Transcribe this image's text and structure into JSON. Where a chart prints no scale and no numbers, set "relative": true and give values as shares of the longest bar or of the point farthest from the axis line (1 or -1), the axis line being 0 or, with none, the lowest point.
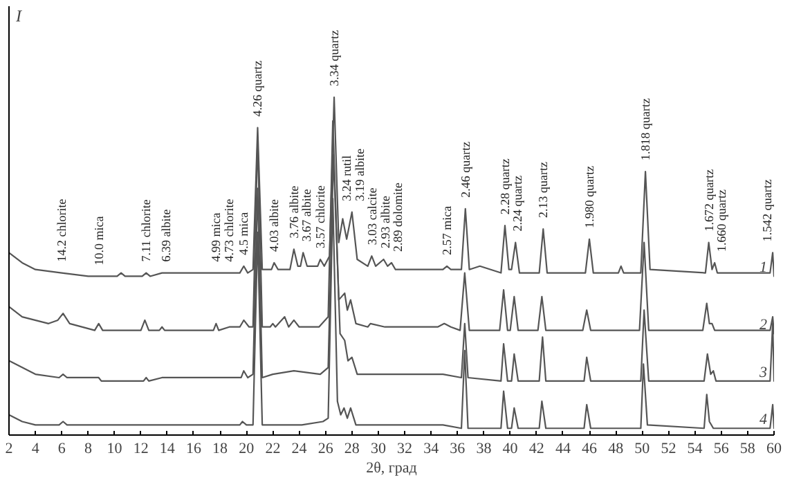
{
  "chart_data": {
    "type": "line",
    "relative": true,
    "xlabel": "2θ, град",
    "ylabel": "I",
    "xlim": [
      2,
      60
    ],
    "xticks": [
      2,
      4,
      6,
      8,
      10,
      12,
      14,
      16,
      18,
      20,
      22,
      24,
      26,
      28,
      30,
      32,
      34,
      36,
      38,
      40,
      42,
      44,
      46,
      48,
      50,
      52,
      54,
      56,
      58,
      60
    ],
    "grid": false,
    "legend": false,
    "marker": "none",
    "line_style": "solid",
    "series": [
      {
        "name": "1",
        "color": "#555555",
        "x": [
          2,
          3,
          4,
          6,
          8,
          8.8,
          10.2,
          10.5,
          10.8,
          12.1,
          12.4,
          12.7,
          13.6,
          13.9,
          14.2,
          17.7,
          18.7,
          19.5,
          19.8,
          20.1,
          20.5,
          20.85,
          21.2,
          21.9,
          22.1,
          22.4,
          23.3,
          23.6,
          23.9,
          24.1,
          24.3,
          24.6,
          25.4,
          25.6,
          25.9,
          26.3,
          26.65,
          27.0,
          27.3,
          27.6,
          28.0,
          28.4,
          29.2,
          29.5,
          29.8,
          30.4,
          30.7,
          31.0,
          31.3,
          34.9,
          35.2,
          35.5,
          36.3,
          36.6,
          36.9,
          37.7,
          39.3,
          39.6,
          39.9,
          40.1,
          40.4,
          40.7,
          42.2,
          42.5,
          42.8,
          45.7,
          46.0,
          46.3,
          48.2,
          48.4,
          48.6,
          49.9,
          50.25,
          50.6,
          54.8,
          55.05,
          55.3,
          55.5,
          55.7,
          59.7,
          59.9,
          60
        ],
        "values": [
          0.54,
          0.51,
          0.49,
          0.48,
          0.47,
          0.47,
          0.47,
          0.48,
          0.47,
          0.47,
          0.48,
          0.47,
          0.48,
          0.48,
          0.48,
          0.48,
          0.48,
          0.48,
          0.5,
          0.48,
          0.49,
          0.91,
          0.49,
          0.49,
          0.51,
          0.49,
          0.49,
          0.55,
          0.5,
          0.5,
          0.54,
          0.5,
          0.5,
          0.52,
          0.5,
          0.53,
          1.0,
          0.57,
          0.64,
          0.58,
          0.66,
          0.52,
          0.5,
          0.53,
          0.5,
          0.52,
          0.5,
          0.51,
          0.49,
          0.49,
          0.5,
          0.49,
          0.49,
          0.67,
          0.49,
          0.5,
          0.48,
          0.62,
          0.49,
          0.49,
          0.57,
          0.48,
          0.48,
          0.61,
          0.48,
          0.48,
          0.58,
          0.48,
          0.48,
          0.5,
          0.48,
          0.48,
          0.78,
          0.49,
          0.48,
          0.57,
          0.49,
          0.51,
          0.48,
          0.48,
          0.54,
          0.47
        ]
      },
      {
        "name": "2",
        "color": "#555555",
        "x": [
          2,
          3,
          5,
          5.7,
          6.1,
          6.6,
          8.5,
          8.8,
          9.1,
          12.0,
          12.3,
          12.6,
          13.4,
          13.6,
          13.8,
          17.5,
          17.7,
          17.9,
          18.7,
          19.5,
          19.8,
          20.2,
          20.5,
          20.85,
          21.2,
          21.8,
          22.0,
          22.2,
          22.9,
          23.2,
          23.6,
          24.0,
          24.3,
          25.5,
          26.2,
          26.55,
          27.0,
          27.45,
          27.65,
          27.9,
          28.3,
          29.2,
          29.4,
          30.5,
          31.3,
          34.5,
          35.0,
          35.5,
          36.2,
          36.55,
          36.9,
          39.2,
          39.5,
          39.8,
          40.0,
          40.3,
          40.6,
          42.1,
          42.4,
          42.7,
          45.5,
          45.8,
          46.1,
          49.8,
          50.15,
          50.5,
          54.6,
          54.9,
          55.1,
          55.3,
          55.5,
          59.7,
          59.9,
          60
        ],
        "values": [
          0.38,
          0.35,
          0.33,
          0.34,
          0.36,
          0.33,
          0.31,
          0.33,
          0.31,
          0.31,
          0.34,
          0.31,
          0.31,
          0.32,
          0.31,
          0.31,
          0.33,
          0.31,
          0.32,
          0.32,
          0.34,
          0.32,
          0.32,
          0.88,
          0.32,
          0.32,
          0.33,
          0.32,
          0.35,
          0.32,
          0.34,
          0.32,
          0.32,
          0.32,
          0.35,
          0.93,
          0.4,
          0.42,
          0.37,
          0.4,
          0.33,
          0.32,
          0.33,
          0.32,
          0.32,
          0.32,
          0.33,
          0.32,
          0.31,
          0.48,
          0.31,
          0.31,
          0.43,
          0.31,
          0.31,
          0.41,
          0.31,
          0.31,
          0.41,
          0.31,
          0.31,
          0.37,
          0.31,
          0.31,
          0.57,
          0.31,
          0.31,
          0.39,
          0.33,
          0.33,
          0.31,
          0.31,
          0.35,
          0.3
        ]
      },
      {
        "name": "3",
        "color": "#555555",
        "x": [
          2,
          3,
          4,
          5.8,
          6.1,
          6.4,
          8.6,
          8.8,
          9.0,
          12.2,
          12.4,
          12.6,
          13.6,
          19.6,
          19.8,
          20.1,
          20.5,
          20.85,
          21.2,
          22.0,
          23.6,
          25.6,
          26.2,
          26.6,
          27.1,
          27.45,
          27.7,
          28.0,
          28.4,
          34.9,
          36.3,
          36.55,
          36.8,
          39.3,
          39.5,
          39.8,
          40.1,
          40.3,
          40.6,
          42.2,
          42.45,
          42.7,
          45.6,
          45.8,
          46.1,
          49.9,
          50.15,
          50.5,
          54.7,
          54.95,
          55.2,
          55.4,
          55.6,
          59.7,
          59.9,
          60
        ],
        "values": [
          0.22,
          0.2,
          0.18,
          0.17,
          0.18,
          0.17,
          0.17,
          0.17,
          0.16,
          0.16,
          0.17,
          0.16,
          0.17,
          0.17,
          0.19,
          0.17,
          0.18,
          0.73,
          0.17,
          0.18,
          0.19,
          0.18,
          0.2,
          0.83,
          0.3,
          0.28,
          0.22,
          0.23,
          0.18,
          0.18,
          0.17,
          0.33,
          0.17,
          0.16,
          0.27,
          0.16,
          0.16,
          0.24,
          0.16,
          0.16,
          0.29,
          0.16,
          0.16,
          0.23,
          0.16,
          0.16,
          0.37,
          0.16,
          0.16,
          0.24,
          0.18,
          0.19,
          0.16,
          0.16,
          0.33,
          0.16
        ]
      },
      {
        "name": "4",
        "color": "#555555",
        "x": [
          2,
          3,
          4,
          5.8,
          6.1,
          6.4,
          8.6,
          8.8,
          9.0,
          12.1,
          12.3,
          12.6,
          13.7,
          19.5,
          19.7,
          20.0,
          20.5,
          20.85,
          21.2,
          22.0,
          23.5,
          24.2,
          25.8,
          26.2,
          26.55,
          26.9,
          27.15,
          27.4,
          27.65,
          27.9,
          28.3,
          34.9,
          36.3,
          36.55,
          36.8,
          39.3,
          39.5,
          39.8,
          40.1,
          40.3,
          40.6,
          42.2,
          42.4,
          42.7,
          45.6,
          45.8,
          46.1,
          49.9,
          50.1,
          50.4,
          54.7,
          54.9,
          55.1,
          55.4,
          59.7,
          59.9,
          60
        ],
        "values": [
          0.06,
          0.04,
          0.03,
          0.03,
          0.04,
          0.03,
          0.03,
          0.03,
          0.03,
          0.03,
          0.03,
          0.03,
          0.03,
          0.03,
          0.04,
          0.03,
          0.03,
          0.6,
          0.03,
          0.03,
          0.03,
          0.03,
          0.04,
          0.05,
          0.7,
          0.1,
          0.06,
          0.08,
          0.05,
          0.08,
          0.03,
          0.03,
          0.02,
          0.25,
          0.02,
          0.02,
          0.13,
          0.02,
          0.02,
          0.08,
          0.02,
          0.02,
          0.1,
          0.02,
          0.02,
          0.09,
          0.02,
          0.02,
          0.21,
          0.03,
          0.02,
          0.12,
          0.04,
          0.02,
          0.02,
          0.09,
          0.02
        ]
      }
    ],
    "annotations": [
      {
        "text": "14.2 chlorite",
        "x": 6,
        "y": 0.48
      },
      {
        "text": "10.0 mica",
        "x": 8.8,
        "y": 0.47
      },
      {
        "text": "7.11 chlorite",
        "x": 12.4,
        "y": 0.48
      },
      {
        "text": "6.39 albite",
        "x": 13.9,
        "y": 0.48
      },
      {
        "text": "4.99 mica",
        "x": 17.7,
        "y": 0.48
      },
      {
        "text": "4.73 chlorite",
        "x": 18.7,
        "y": 0.48
      },
      {
        "text": "4.5 mica",
        "x": 19.8,
        "y": 0.5
      },
      {
        "text": "4.26 quartz",
        "x": 20.85,
        "y": 0.91
      },
      {
        "text": "4.03 albite",
        "x": 22.1,
        "y": 0.51
      },
      {
        "text": "3.76 albite",
        "x": 23.6,
        "y": 0.55
      },
      {
        "text": "3.67 albite",
        "x": 24.3,
        "y": 0.54
      },
      {
        "text": "3.57 chlorite",
        "x": 25.6,
        "y": 0.52
      },
      {
        "text": "3.34 quartz",
        "x": 26.65,
        "y": 1.0
      },
      {
        "text": "3.24 rutil",
        "x": 27.3,
        "y": 0.64
      },
      {
        "text": "3.19 albite",
        "x": 28.0,
        "y": 0.66
      },
      {
        "text": "3.03 calcite",
        "x": 29.5,
        "y": 0.53
      },
      {
        "text": "2.93 albite",
        "x": 30.4,
        "y": 0.52
      },
      {
        "text": "2.89 dolomite",
        "x": 31.0,
        "y": 0.51
      },
      {
        "text": "2.57 mica",
        "x": 35.2,
        "y": 0.5
      },
      {
        "text": "2.46 quartz",
        "x": 36.6,
        "y": 0.67
      },
      {
        "text": "2.28 quartz",
        "x": 39.6,
        "y": 0.62
      },
      {
        "text": "2.24 quartz",
        "x": 40.4,
        "y": 0.57
      },
      {
        "text": "2.13 quartz",
        "x": 42.5,
        "y": 0.61
      },
      {
        "text": "1.980 quartz",
        "x": 46.0,
        "y": 0.58
      },
      {
        "text": "1.818 quartz",
        "x": 50.25,
        "y": 0.78
      },
      {
        "text": "1.672 quartz",
        "x": 55.05,
        "y": 0.57
      },
      {
        "text": "1.660 quartz",
        "x": 55.5,
        "y": 0.51
      },
      {
        "text": "1.542 quartz",
        "x": 59.9,
        "y": 0.54
      }
    ]
  }
}
